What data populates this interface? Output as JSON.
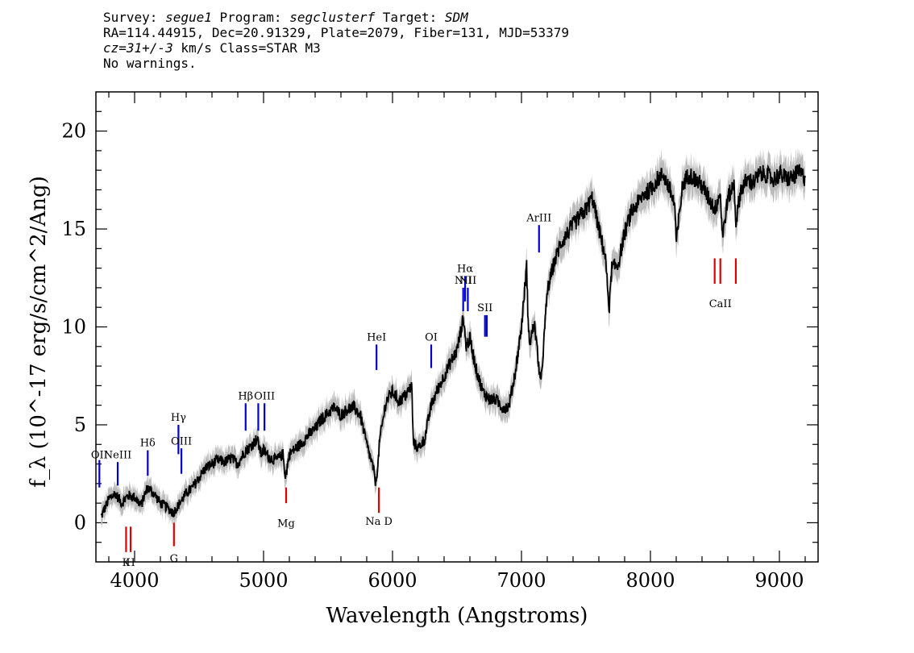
{
  "header": {
    "survey_label": "Survey: ",
    "survey": "segue1",
    "program_label": " Program: ",
    "program": "segclusterf",
    "target_label": " Target: ",
    "target": "SDM",
    "coords": "RA=114.44915, Dec=20.91329, Plate=2079, Fiber=131, MJD=53379",
    "cz": "cz=31+/-3",
    "cz_unit": " km/s Class=STAR M3",
    "warnings": "No warnings."
  },
  "colors": {
    "spectrum": "#000000",
    "error_band": "#bbbbbb",
    "emission": "#0000cc",
    "absorption": "#dd0000"
  },
  "chart_data": {
    "type": "line",
    "xlabel": "Wavelength (Angstroms)",
    "ylabel": "f_λ (10^-17 erg/s/cm^2/Ang)",
    "xlim": [
      3700,
      9300
    ],
    "ylim": [
      -2,
      22
    ],
    "xticks": [
      4000,
      5000,
      6000,
      7000,
      8000,
      9000
    ],
    "yticks": [
      0,
      5,
      10,
      15,
      20
    ],
    "grid": false,
    "series": [
      {
        "x": [
          3740,
          3800,
          3850,
          3900,
          3950,
          4000,
          4050,
          4100,
          4150,
          4200,
          4250,
          4300,
          4350,
          4400,
          4450,
          4500,
          4550,
          4600,
          4650,
          4700,
          4750,
          4800,
          4850,
          4900,
          4950,
          4980,
          5000,
          5050,
          5100,
          5150,
          5170,
          5200,
          5250,
          5300,
          5350,
          5400,
          5450,
          5500,
          5550,
          5600,
          5650,
          5700,
          5750,
          5800,
          5850,
          5870,
          5890,
          5900,
          5950,
          6000,
          6050,
          6100,
          6150,
          6160,
          6200,
          6250,
          6300,
          6350,
          6400,
          6450,
          6500,
          6550,
          6570,
          6600,
          6650,
          6700,
          6750,
          6800,
          6850,
          6900,
          6950,
          7000,
          7040,
          7055,
          7070,
          7100,
          7150,
          7200,
          7250,
          7300,
          7400,
          7500,
          7550,
          7600,
          7650,
          7680,
          7700,
          7750,
          7800,
          7850,
          7900,
          7950,
          8000,
          8050,
          8100,
          8150,
          8190,
          8200,
          8250,
          8300,
          8350,
          8400,
          8450,
          8500,
          8540,
          8560,
          8600,
          8650,
          8662,
          8700,
          8750,
          8800,
          8850,
          8900,
          8950,
          9000,
          9050,
          9100,
          9150,
          9200
        ],
        "y": [
          0.3,
          1.2,
          1.5,
          1.0,
          1.4,
          1.3,
          0.9,
          1.8,
          1.5,
          1.0,
          0.8,
          0.5,
          1.0,
          1.5,
          1.8,
          2.3,
          2.8,
          3.0,
          3.2,
          3.1,
          3.3,
          3.0,
          3.6,
          3.9,
          4.3,
          3.5,
          3.7,
          3.3,
          3.2,
          3.5,
          2.3,
          3.5,
          3.8,
          4.1,
          4.5,
          4.8,
          5.3,
          5.6,
          5.9,
          5.5,
          5.8,
          5.9,
          5.5,
          4.0,
          2.8,
          2.0,
          3.2,
          4.2,
          6.2,
          6.7,
          6.2,
          6.5,
          7.0,
          4.1,
          3.8,
          4.3,
          6.0,
          6.8,
          7.5,
          8.2,
          8.8,
          10.5,
          9.0,
          9.4,
          7.8,
          6.7,
          6.3,
          6.3,
          5.9,
          5.9,
          7.6,
          10.0,
          13.1,
          9.5,
          9.3,
          10.2,
          7.0,
          11.8,
          13.2,
          14.2,
          15.2,
          16.0,
          16.6,
          15.0,
          13.6,
          10.9,
          13.0,
          13.2,
          14.8,
          15.8,
          16.3,
          16.8,
          17.0,
          17.5,
          17.8,
          17.0,
          16.2,
          14.2,
          17.3,
          17.8,
          17.5,
          17.2,
          16.6,
          16.0,
          16.9,
          14.6,
          16.6,
          17.3,
          15.3,
          17.0,
          17.5,
          17.4,
          17.8,
          17.8,
          17.5,
          17.8,
          17.6,
          17.6,
          17.9,
          17.6
        ]
      }
    ],
    "lines": [
      {
        "wave": 3727,
        "kind": "emission",
        "label": "OII",
        "y0": 1.8,
        "y1": 3.2,
        "label_y": 3.3
      },
      {
        "wave": 3869,
        "kind": "emission",
        "label": "NeIII",
        "y0": 1.9,
        "y1": 3.1,
        "label_y": 3.3
      },
      {
        "wave": 4102,
        "kind": "emission",
        "label": "Hδ",
        "y0": 2.4,
        "y1": 3.7,
        "label_y": 3.9
      },
      {
        "wave": 4340,
        "kind": "emission",
        "label": "Hγ",
        "y0": 3.5,
        "y1": 5.0,
        "label_y": 5.2
      },
      {
        "wave": 4363,
        "kind": "emission",
        "label": "OIII",
        "y0": 2.5,
        "y1": 3.8,
        "label_y": 4.0
      },
      {
        "wave": 4861,
        "kind": "emission",
        "label": "Hβ",
        "y0": 4.7,
        "y1": 6.1,
        "label_y": 6.3
      },
      {
        "wave": 4959,
        "kind": "emission",
        "label": "",
        "y0": 4.7,
        "y1": 6.1,
        "label_y": 6.3
      },
      {
        "wave": 5007,
        "kind": "emission",
        "label": "OIII",
        "y0": 4.7,
        "y1": 6.1,
        "label_y": 6.3
      },
      {
        "wave": 5876,
        "kind": "emission",
        "label": "HeI",
        "y0": 7.8,
        "y1": 9.1,
        "label_y": 9.3
      },
      {
        "wave": 6300,
        "kind": "emission",
        "label": "OI",
        "y0": 7.9,
        "y1": 9.1,
        "label_y": 9.3
      },
      {
        "wave": 6548,
        "kind": "emission",
        "label": "NII",
        "y0": 10.8,
        "y1": 12.0,
        "label_y": 12.2
      },
      {
        "wave": 6563,
        "kind": "emission",
        "label": "Hα",
        "y0": 11.3,
        "y1": 12.6,
        "label_y": 12.8
      },
      {
        "wave": 6584,
        "kind": "emission",
        "label": "NII",
        "y0": 10.8,
        "y1": 12.0,
        "label_y": 12.2
      },
      {
        "wave": 6717,
        "kind": "emission",
        "label": "SII",
        "y0": 9.5,
        "y1": 10.6,
        "label_y": 10.8
      },
      {
        "wave": 6731,
        "kind": "emission",
        "label": "",
        "y0": 9.5,
        "y1": 10.6,
        "label_y": 10.8
      },
      {
        "wave": 7136,
        "kind": "emission",
        "label": "ArIII",
        "y0": 13.8,
        "y1": 15.2,
        "label_y": 15.4
      },
      {
        "wave": 3934,
        "kind": "absorption",
        "label": "K",
        "y0": -1.5,
        "y1": -0.2,
        "label_y": -2.2
      },
      {
        "wave": 3969,
        "kind": "absorption",
        "label": "H",
        "y0": -1.5,
        "y1": -0.2,
        "label_y": -2.2
      },
      {
        "wave": 4305,
        "kind": "absorption",
        "label": "G",
        "y0": -1.2,
        "y1": 0.0,
        "label_y": -2.0
      },
      {
        "wave": 5175,
        "kind": "absorption",
        "label": "Mg",
        "y0": 1.0,
        "y1": 1.8,
        "label_y": -0.2
      },
      {
        "wave": 5894,
        "kind": "absorption",
        "label": "Na D",
        "y0": 0.5,
        "y1": 1.8,
        "label_y": -0.1
      },
      {
        "wave": 8498,
        "kind": "absorption",
        "label": "",
        "y0": 12.2,
        "y1": 13.5,
        "label_y": 11.0
      },
      {
        "wave": 8542,
        "kind": "absorption",
        "label": "CaII",
        "y0": 12.2,
        "y1": 13.5,
        "label_y": 11.0
      },
      {
        "wave": 8662,
        "kind": "absorption",
        "label": "",
        "y0": 12.2,
        "y1": 13.5,
        "label_y": 11.0
      }
    ]
  }
}
